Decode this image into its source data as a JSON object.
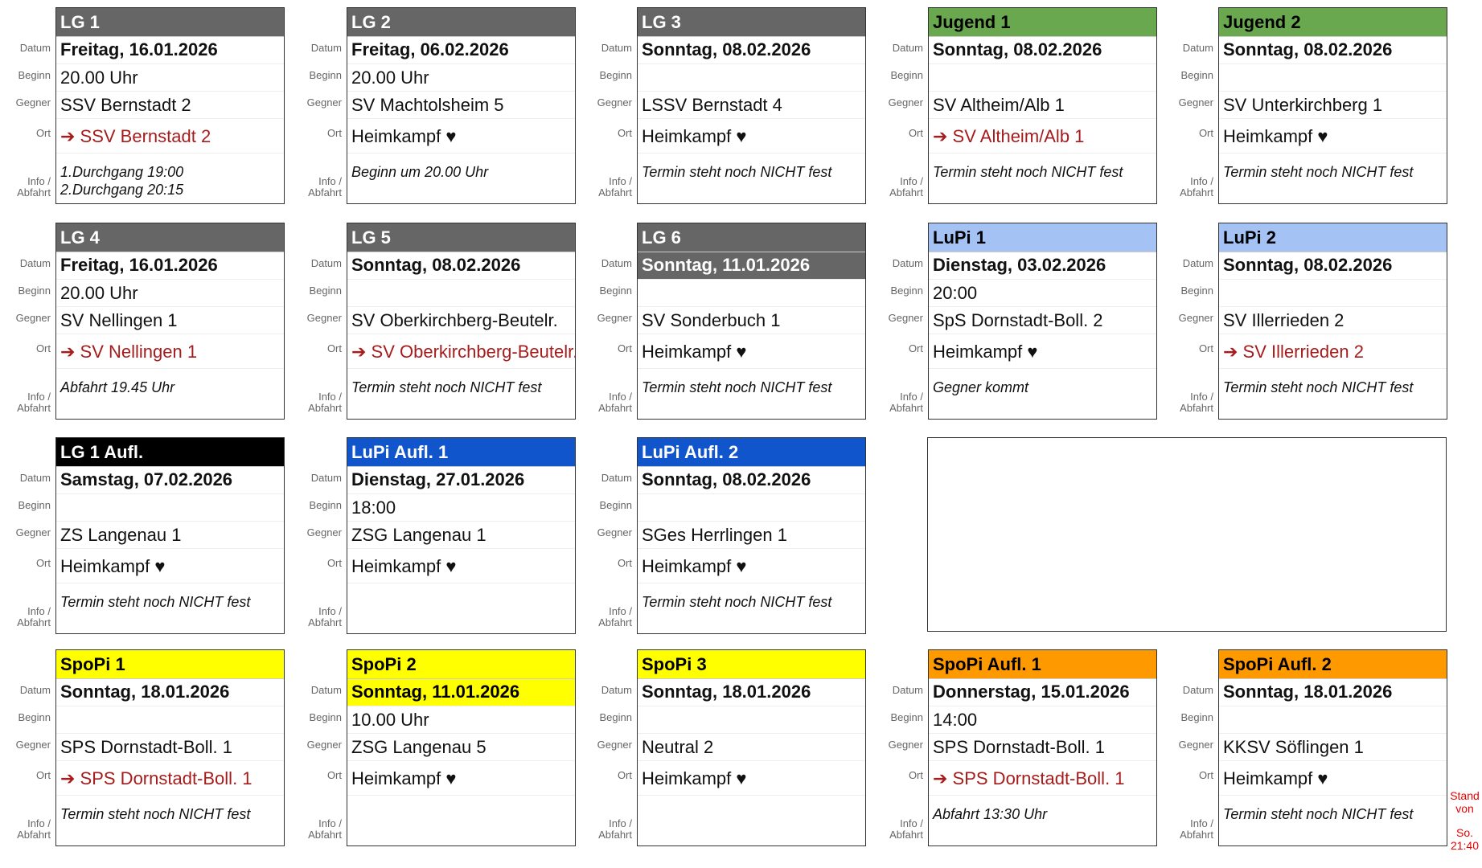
{
  "labels": {
    "datum": "Datum",
    "beginn": "Beginn",
    "gegner": "Gegner",
    "ort": "Ort",
    "info1": "Info /",
    "info2": "Abfahrt"
  },
  "colors": {
    "grey": "#666666",
    "green": "#6aa84f",
    "lightblue": "#a4c2f4",
    "blue": "#1155cc",
    "yellow": "#ffff00",
    "orange": "#ff9900",
    "black": "#000000",
    "away_text": "#a61c1c"
  },
  "cards": [
    {
      "title": "LG 1",
      "header": "grey",
      "fg": "#fff",
      "date": "Freitag, 16.01.2026",
      "begin": "20.00 Uhr",
      "opponent": "SSV Bernstadt 2",
      "location": "➔ SSV Bernstadt 2",
      "away": true,
      "info": [
        "1.Durchgang 19:00",
        "2.Durchgang 20:15"
      ]
    },
    {
      "title": "LG 2",
      "header": "grey",
      "fg": "#fff",
      "date": "Freitag, 06.02.2026",
      "begin": "20.00 Uhr",
      "opponent": "SV Machtolsheim 5",
      "location": "Heimkampf ♥",
      "away": false,
      "info": [
        "Beginn um 20.00 Uhr"
      ]
    },
    {
      "title": "LG 3",
      "header": "grey",
      "fg": "#fff",
      "date": "Sonntag, 08.02.2026",
      "begin": "",
      "opponent": "LSSV Bernstadt 4",
      "location": "Heimkampf ♥",
      "away": false,
      "info": [
        "Termin steht noch NICHT fest"
      ]
    },
    {
      "title": "Jugend 1",
      "header": "green",
      "fg": "#000",
      "date": "Sonntag, 08.02.2026",
      "begin": "",
      "opponent": "SV Altheim/Alb 1",
      "location": "➔ SV Altheim/Alb 1",
      "away": true,
      "info": [
        "Termin steht noch NICHT fest"
      ]
    },
    {
      "title": "Jugend 2",
      "header": "green",
      "fg": "#000",
      "date": "Sonntag, 08.02.2026",
      "begin": "",
      "opponent": "SV Unterkirchberg 1",
      "location": "Heimkampf ♥",
      "away": false,
      "info": [
        "Termin steht noch NICHT fest"
      ]
    },
    {
      "title": "LG 4",
      "header": "grey",
      "fg": "#fff",
      "date": "Freitag, 16.01.2026",
      "begin": "20.00 Uhr",
      "opponent": "SV Nellingen 1",
      "location": "➔ SV Nellingen 1",
      "away": true,
      "info": [
        "Abfahrt 19.45 Uhr"
      ]
    },
    {
      "title": "LG 5",
      "header": "grey",
      "fg": "#fff",
      "date": "Sonntag, 08.02.2026",
      "begin": "",
      "opponent": "SV Oberkirchberg-Beutelr.",
      "location": "➔ SV Oberkirchberg-Beutelr.",
      "away": true,
      "info": [
        "Termin steht noch NICHT fest"
      ]
    },
    {
      "title": "LG 6",
      "header": "grey",
      "fg": "#fff",
      "date_highlight": true,
      "date": "Sonntag, 11.01.2026",
      "begin": "",
      "opponent": "SV Sonderbuch 1",
      "location": "Heimkampf ♥",
      "away": false,
      "info": [
        "Termin steht noch NICHT fest"
      ]
    },
    {
      "title": "LuPi 1",
      "header": "lightblue",
      "fg": "#000",
      "date": "Dienstag, 03.02.2026",
      "begin": "20:00",
      "opponent": "SpS Dornstadt-Boll. 2",
      "location": "Heimkampf ♥",
      "away": false,
      "info": [
        "Gegner kommt"
      ]
    },
    {
      "title": "LuPi 2",
      "header": "lightblue",
      "fg": "#000",
      "date": "Sonntag, 08.02.2026",
      "begin": "",
      "opponent": "SV Illerrieden 2",
      "location": "➔ SV Illerrieden 2",
      "away": true,
      "info": [
        "Termin steht noch NICHT fest"
      ]
    },
    {
      "title": "LG 1 Aufl.",
      "header": "black",
      "fg": "#fff",
      "date": "Samstag, 07.02.2026",
      "begin": "",
      "opponent": "ZS Langenau 1",
      "location": "Heimkampf ♥",
      "away": false,
      "info": [
        "Termin steht noch NICHT fest"
      ]
    },
    {
      "title": "LuPi Aufl. 1",
      "header": "blue",
      "fg": "#fff",
      "date": "Dienstag, 27.01.2026",
      "begin": "18:00",
      "opponent": "ZSG Langenau 1",
      "location": "Heimkampf ♥",
      "away": false,
      "info": []
    },
    {
      "title": "LuPi Aufl. 2",
      "header": "blue",
      "fg": "#fff",
      "date": "Sonntag, 08.02.2026",
      "begin": "",
      "opponent": "SGes Herrlingen 1",
      "location": "Heimkampf ♥",
      "away": false,
      "info": [
        "Termin steht noch NICHT fest"
      ]
    },
    null,
    null,
    {
      "title": "SpoPi 1",
      "header": "yellow",
      "fg": "#000",
      "date": "Sonntag, 18.01.2026",
      "begin": "",
      "opponent": "SPS Dornstadt-Boll. 1",
      "location": "➔ SPS Dornstadt-Boll. 1",
      "away": true,
      "info": [
        "Termin steht noch NICHT fest"
      ]
    },
    {
      "title": "SpoPi 2",
      "header": "yellow",
      "fg": "#000",
      "date_highlight": true,
      "date": "Sonntag, 11.01.2026",
      "begin": "10.00 Uhr",
      "opponent": "ZSG Langenau 5",
      "location": "Heimkampf ♥",
      "away": false,
      "info": []
    },
    {
      "title": "SpoPi 3",
      "header": "yellow",
      "fg": "#000",
      "date": "Sonntag, 18.01.2026",
      "begin": "",
      "opponent": "Neutral 2",
      "location": "Heimkampf ♥",
      "away": false,
      "info": []
    },
    {
      "title": "SpoPi Aufl. 1",
      "header": "orange",
      "fg": "#000",
      "date": "Donnerstag, 15.01.2026",
      "begin": "14:00",
      "opponent": "SPS Dornstadt-Boll. 1",
      "location": "➔ SPS Dornstadt-Boll. 1",
      "away": true,
      "info": [
        "Abfahrt 13:30 Uhr"
      ]
    },
    {
      "title": "SpoPi Aufl. 2",
      "header": "orange",
      "fg": "#000",
      "date": "Sonntag, 18.01.2026",
      "begin": "",
      "opponent": "KKSV Söflingen 1",
      "location": "Heimkampf ♥",
      "away": false,
      "info": [
        "Termin steht noch NICHT fest"
      ]
    }
  ],
  "stand": {
    "line1": "Stand",
    "line2": "von",
    "line3": "So.",
    "line4": "21:40"
  }
}
